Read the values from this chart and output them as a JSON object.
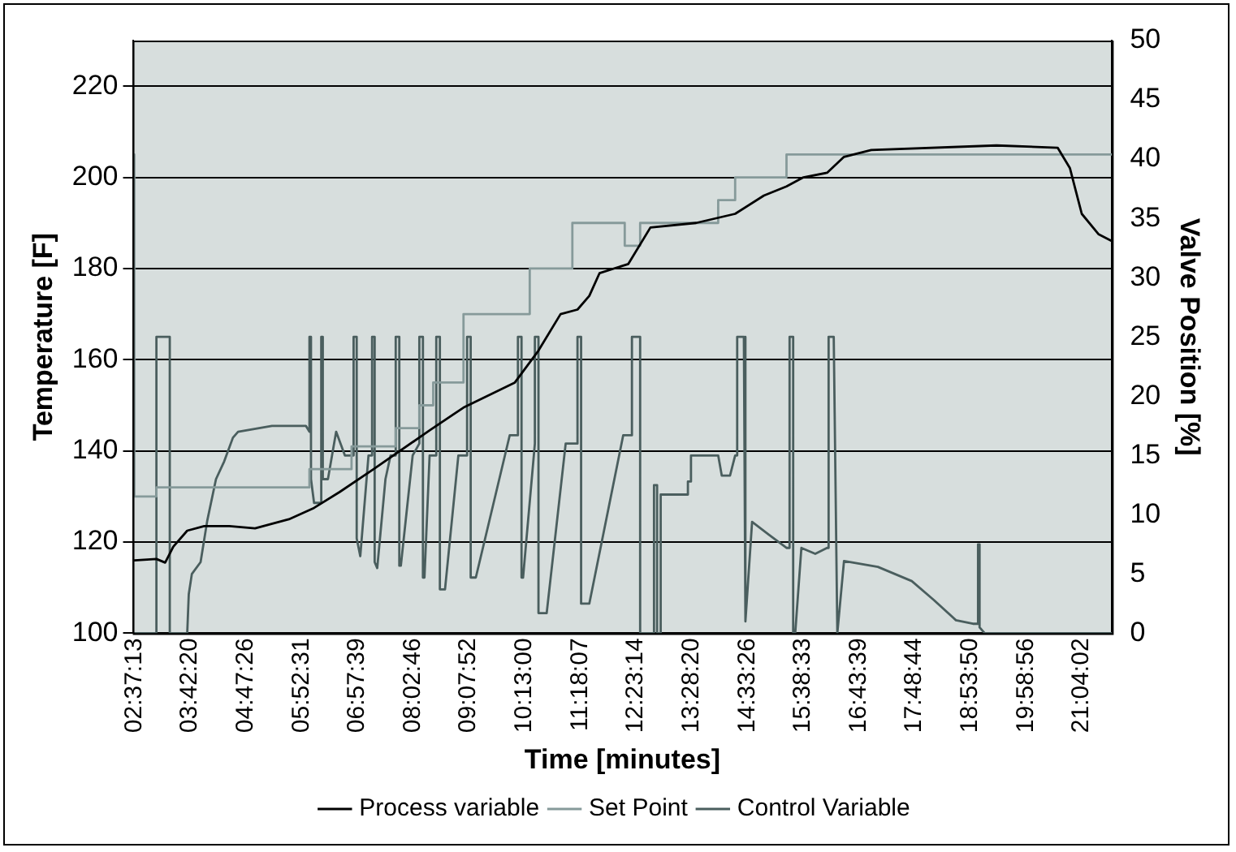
{
  "chart_data": {
    "type": "line",
    "xlabel": "Time [minutes]",
    "ylabel": "Temperature [F]",
    "y2label": "Valve Position [%]",
    "xlim": [
      2.59,
      21.66
    ],
    "xticks": [
      {
        "value": 2.6203,
        "label": "02:37:13"
      },
      {
        "value": 3.7056,
        "label": "03:42:20"
      },
      {
        "value": 4.7906,
        "label": "04:47:26"
      },
      {
        "value": 5.8753,
        "label": "05:52:31"
      },
      {
        "value": 6.9608,
        "label": "06:57:39"
      },
      {
        "value": 8.0461,
        "label": "08:02:46"
      },
      {
        "value": 9.1311,
        "label": "09:07:52"
      },
      {
        "value": 10.2167,
        "label": "10:13:00"
      },
      {
        "value": 11.3019,
        "label": "11:18:07"
      },
      {
        "value": 12.3872,
        "label": "12:23:14"
      },
      {
        "value": 13.4722,
        "label": "13:28:20"
      },
      {
        "value": 14.5572,
        "label": "14:33:26"
      },
      {
        "value": 15.6425,
        "label": "15:38:33"
      },
      {
        "value": 16.7275,
        "label": "16:43:39"
      },
      {
        "value": 17.8122,
        "label": "17:48:44"
      },
      {
        "value": 18.8972,
        "label": "18:53:50"
      },
      {
        "value": 19.9822,
        "label": "19:58:56"
      },
      {
        "value": 21.0672,
        "label": "21:04:02"
      }
    ],
    "ylim": [
      100,
      230
    ],
    "yticks": [
      100,
      120,
      140,
      160,
      180,
      200,
      220
    ],
    "y2lim": [
      0,
      50
    ],
    "y2ticks": [
      0,
      5,
      10,
      15,
      20,
      25,
      30,
      35,
      40,
      45,
      50
    ],
    "grid": "y",
    "legend": "bottom",
    "marker": "none",
    "series": [
      {
        "name": "Process variable",
        "color": "#000000",
        "x": [
          2.62,
          3.05,
          3.22,
          3.38,
          3.65,
          3.98,
          4.47,
          4.97,
          5.63,
          6.12,
          6.62,
          7.28,
          8.37,
          9.03,
          10.03,
          10.49,
          10.92,
          11.25,
          11.48,
          11.68,
          12.24,
          12.67,
          13.56,
          14.32,
          14.88,
          15.32,
          15.65,
          16.11,
          16.44,
          16.97,
          19.41,
          20.6,
          20.84,
          21.07,
          21.4,
          21.66
        ],
        "values": [
          116,
          116.3,
          115.5,
          119,
          122.5,
          123.5,
          123.5,
          123,
          125,
          127.5,
          131,
          136,
          144.5,
          149.5,
          155,
          162,
          170,
          171,
          174,
          179,
          181,
          189,
          190,
          192,
          196,
          198,
          200,
          201,
          204.5,
          206,
          207,
          206.5,
          202,
          192,
          187.5,
          186
        ]
      },
      {
        "name": "Set Point",
        "type": "step",
        "color": "#869a9a",
        "x": [
          2.62,
          3.05,
          6.03,
          6.85,
          7.71,
          8.17,
          8.44,
          9.03,
          10.32,
          11.15,
          12.17,
          12.47,
          13.99,
          14.32,
          15.32,
          16.11,
          21.66
        ],
        "values": [
          205,
          130,
          132,
          136,
          141,
          145,
          150,
          155,
          170,
          180,
          190,
          185,
          190,
          195,
          200,
          205,
          205
        ]
      },
      {
        "name": "Control Variable",
        "axis": "y2",
        "color": "#4a5e5e",
        "x": [
          2.62,
          3.05,
          3.05,
          3.31,
          3.31,
          3.65,
          3.68,
          3.74,
          3.91,
          4.04,
          4.21,
          4.37,
          4.54,
          4.64,
          5.3,
          5.96,
          6.03,
          6.03,
          6.06,
          6.06,
          6.12,
          6.26,
          6.26,
          6.29,
          6.29,
          6.39,
          6.55,
          6.72,
          6.89,
          6.89,
          6.95,
          6.95,
          7.02,
          7.18,
          7.25,
          7.25,
          7.3,
          7.3,
          7.35,
          7.51,
          7.61,
          7.71,
          7.71,
          7.78,
          7.78,
          7.81,
          8.04,
          8.17,
          8.17,
          8.24,
          8.24,
          8.27,
          8.37,
          8.5,
          8.5,
          8.57,
          8.57,
          8.67,
          8.93,
          9.1,
          9.1,
          9.17,
          9.17,
          9.27,
          9.93,
          10.09,
          10.09,
          10.16,
          10.16,
          10.19,
          10.42,
          10.42,
          10.49,
          10.49,
          10.65,
          11.02,
          11.25,
          11.25,
          11.32,
          11.32,
          11.48,
          12.14,
          12.31,
          12.31,
          12.47,
          12.47,
          12.74,
          12.74,
          12.8,
          12.8,
          12.87,
          12.87,
          13.4,
          13.4,
          13.46,
          13.46,
          13.99,
          14.06,
          14.22,
          14.32,
          14.36,
          14.36,
          14.49,
          14.52,
          14.65,
          14.98,
          15.32,
          15.38,
          15.38,
          15.45,
          15.45,
          15.49,
          15.61,
          15.88,
          16.11,
          16.14,
          16.14,
          16.24,
          16.31,
          16.44,
          17.1,
          17.76,
          18.19,
          18.62,
          18.95,
          19.05,
          19.05,
          19.08,
          19.08,
          19.18,
          21.66
        ],
        "values": [
          0,
          0,
          25,
          25,
          0,
          0,
          3.3,
          5,
          6,
          9.5,
          13,
          14.5,
          16.5,
          17,
          17.5,
          17.5,
          17,
          25,
          25,
          13,
          11,
          11,
          25,
          25,
          13,
          13,
          17,
          15,
          15,
          25,
          25,
          8,
          6.5,
          15,
          15,
          25,
          25,
          6,
          5.5,
          13,
          15,
          15,
          25,
          25,
          5.7,
          5.7,
          15,
          16,
          25,
          25,
          4.7,
          4.7,
          15,
          15,
          25,
          25,
          3.7,
          3.7,
          15,
          15,
          25,
          25,
          4.7,
          4.7,
          16.7,
          16.7,
          25,
          25,
          4.7,
          4.7,
          16,
          25,
          25,
          1.7,
          1.7,
          16,
          16,
          25,
          25,
          2.5,
          2.5,
          16.7,
          16.7,
          25,
          25,
          0,
          0,
          12.5,
          12.5,
          0,
          0,
          11.7,
          11.7,
          12.8,
          12.8,
          15,
          15,
          13.3,
          13.3,
          15,
          15,
          25,
          25,
          1,
          9.4,
          8.3,
          7.2,
          7.2,
          25,
          25,
          0,
          0,
          7.2,
          6.7,
          7.2,
          7.2,
          25,
          25,
          0,
          6.1,
          5.6,
          4.4,
          2.8,
          1.1,
          0.8,
          0.8,
          7.5,
          7.5,
          0.5,
          0,
          0
        ]
      }
    ]
  }
}
